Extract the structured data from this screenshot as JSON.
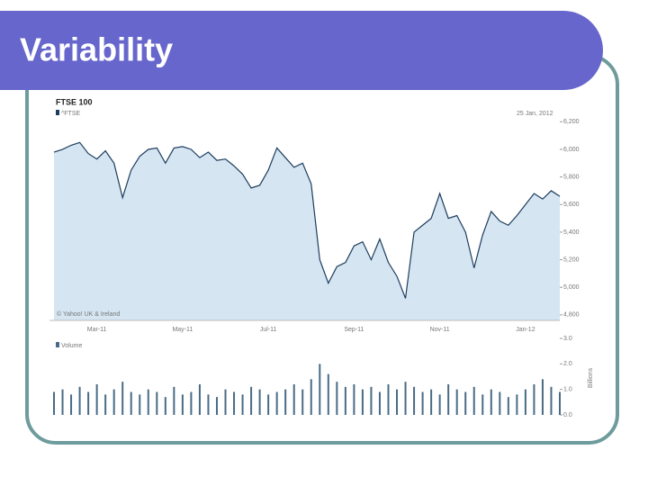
{
  "slide_title": "Variability",
  "chart_data": [
    {
      "type": "area",
      "title": "FTSE 100",
      "date_label": "25 Jan, 2012",
      "source": "© Yahoo! UK & Ireland",
      "categories": [
        null,
        null,
        null,
        null,
        null,
        "Mar-11",
        null,
        null,
        null,
        null,
        null,
        null,
        null,
        null,
        null,
        "May-11",
        null,
        null,
        null,
        null,
        null,
        null,
        null,
        null,
        null,
        "Jul-11",
        null,
        null,
        null,
        null,
        null,
        null,
        null,
        null,
        null,
        "Sep-11",
        null,
        null,
        null,
        null,
        null,
        null,
        null,
        null,
        null,
        "Nov-11",
        null,
        null,
        null,
        null,
        null,
        null,
        null,
        null,
        null,
        "Jan-12",
        null,
        null,
        null,
        null
      ],
      "series": [
        {
          "name": "^FTSE",
          "color": "#1d3d5e",
          "fill": "#d5e5f1",
          "values": [
            5980,
            6000,
            6030,
            6050,
            5970,
            5930,
            5990,
            5900,
            5650,
            5850,
            5950,
            6000,
            6010,
            5900,
            6010,
            6020,
            6000,
            5940,
            5980,
            5920,
            5930,
            5880,
            5820,
            5720,
            5740,
            5850,
            6010,
            5940,
            5870,
            5900,
            5750,
            5200,
            5030,
            5150,
            5180,
            5300,
            5330,
            5200,
            5350,
            5180,
            5080,
            4920,
            5400,
            5450,
            5500,
            5680,
            5500,
            5520,
            5400,
            5140,
            5380,
            5550,
            5480,
            5450,
            5520,
            5600,
            5680,
            5640,
            5700,
            5660
          ]
        }
      ],
      "ylim": [
        4760,
        6300
      ],
      "yticks": [
        {
          "value": 4800,
          "label": "4,800"
        },
        {
          "value": 5000,
          "label": "5,000"
        },
        {
          "value": 5200,
          "label": "5,200"
        },
        {
          "value": 5400,
          "label": "5,400"
        },
        {
          "value": 5600,
          "label": "5,600"
        },
        {
          "value": 5800,
          "label": "5,800"
        },
        {
          "value": 6000,
          "label": "6,000"
        },
        {
          "value": 6200,
          "label": "6,200"
        }
      ]
    },
    {
      "type": "bar",
      "y_label": "Billions",
      "series": [
        {
          "name": "Volume",
          "color": "#4a6b85",
          "values": [
            0.9,
            1.0,
            0.8,
            1.1,
            0.9,
            1.2,
            0.8,
            1.0,
            1.3,
            0.9,
            0.8,
            1.0,
            0.9,
            0.7,
            1.1,
            0.8,
            0.9,
            1.2,
            0.8,
            0.7,
            1.0,
            0.9,
            0.8,
            1.1,
            1.0,
            0.8,
            0.9,
            1.0,
            1.2,
            1.0,
            1.4,
            2.0,
            1.6,
            1.3,
            1.1,
            1.2,
            1.0,
            1.1,
            0.9,
            1.2,
            1.0,
            1.3,
            1.1,
            0.9,
            1.0,
            0.8,
            1.2,
            1.0,
            0.9,
            1.1,
            0.8,
            1.0,
            0.9,
            0.7,
            0.8,
            1.0,
            1.2,
            1.4,
            1.1,
            0.9
          ]
        }
      ],
      "ylim": [
        0,
        3
      ],
      "yticks": [
        {
          "value": 0,
          "label": "0.0"
        },
        {
          "value": 1,
          "label": "1.0"
        },
        {
          "value": 2,
          "label": "2.0"
        },
        {
          "value": 3,
          "label": "3.0"
        }
      ]
    }
  ]
}
